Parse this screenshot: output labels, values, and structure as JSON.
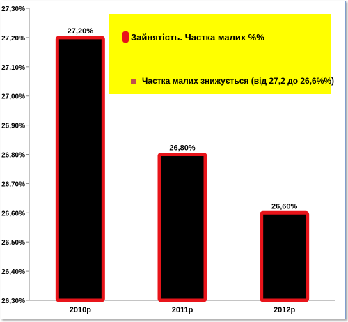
{
  "chart_data": {
    "type": "bar",
    "categories": [
      "2010р",
      "2011р",
      "2012р"
    ],
    "values": [
      27.2,
      26.8,
      26.6
    ],
    "data_labels": [
      "27,20%",
      "26,80%",
      "26,60%"
    ],
    "ylim": [
      26.3,
      27.3
    ],
    "y_ticks": [
      "26,30%",
      "26,40%",
      "26,50%",
      "26,60%",
      "26,70%",
      "26,80%",
      "26,90%",
      "27,00%",
      "27,10%",
      "27,20%",
      "27,30%"
    ],
    "y_tick_values": [
      26.3,
      26.4,
      26.5,
      26.6,
      26.7,
      26.8,
      26.9,
      27.0,
      27.1,
      27.2,
      27.3
    ],
    "series": [
      {
        "name": "Зайнятість. Частка малих %%",
        "values": [
          27.2,
          26.8,
          26.6
        ],
        "fill": "#000000",
        "stroke": "#e8141a"
      }
    ],
    "legend": {
      "position": "top-right",
      "background": "#ffff00",
      "items": [
        {
          "label": "Зайнятість. Частка малих %%",
          "color": "#e8141a"
        },
        {
          "label": "Частка малих знижується (від 27,2 до 26,6%%)",
          "color": "#c0504d"
        }
      ]
    },
    "grid": false,
    "title": "",
    "xlabel": "",
    "ylabel": ""
  }
}
